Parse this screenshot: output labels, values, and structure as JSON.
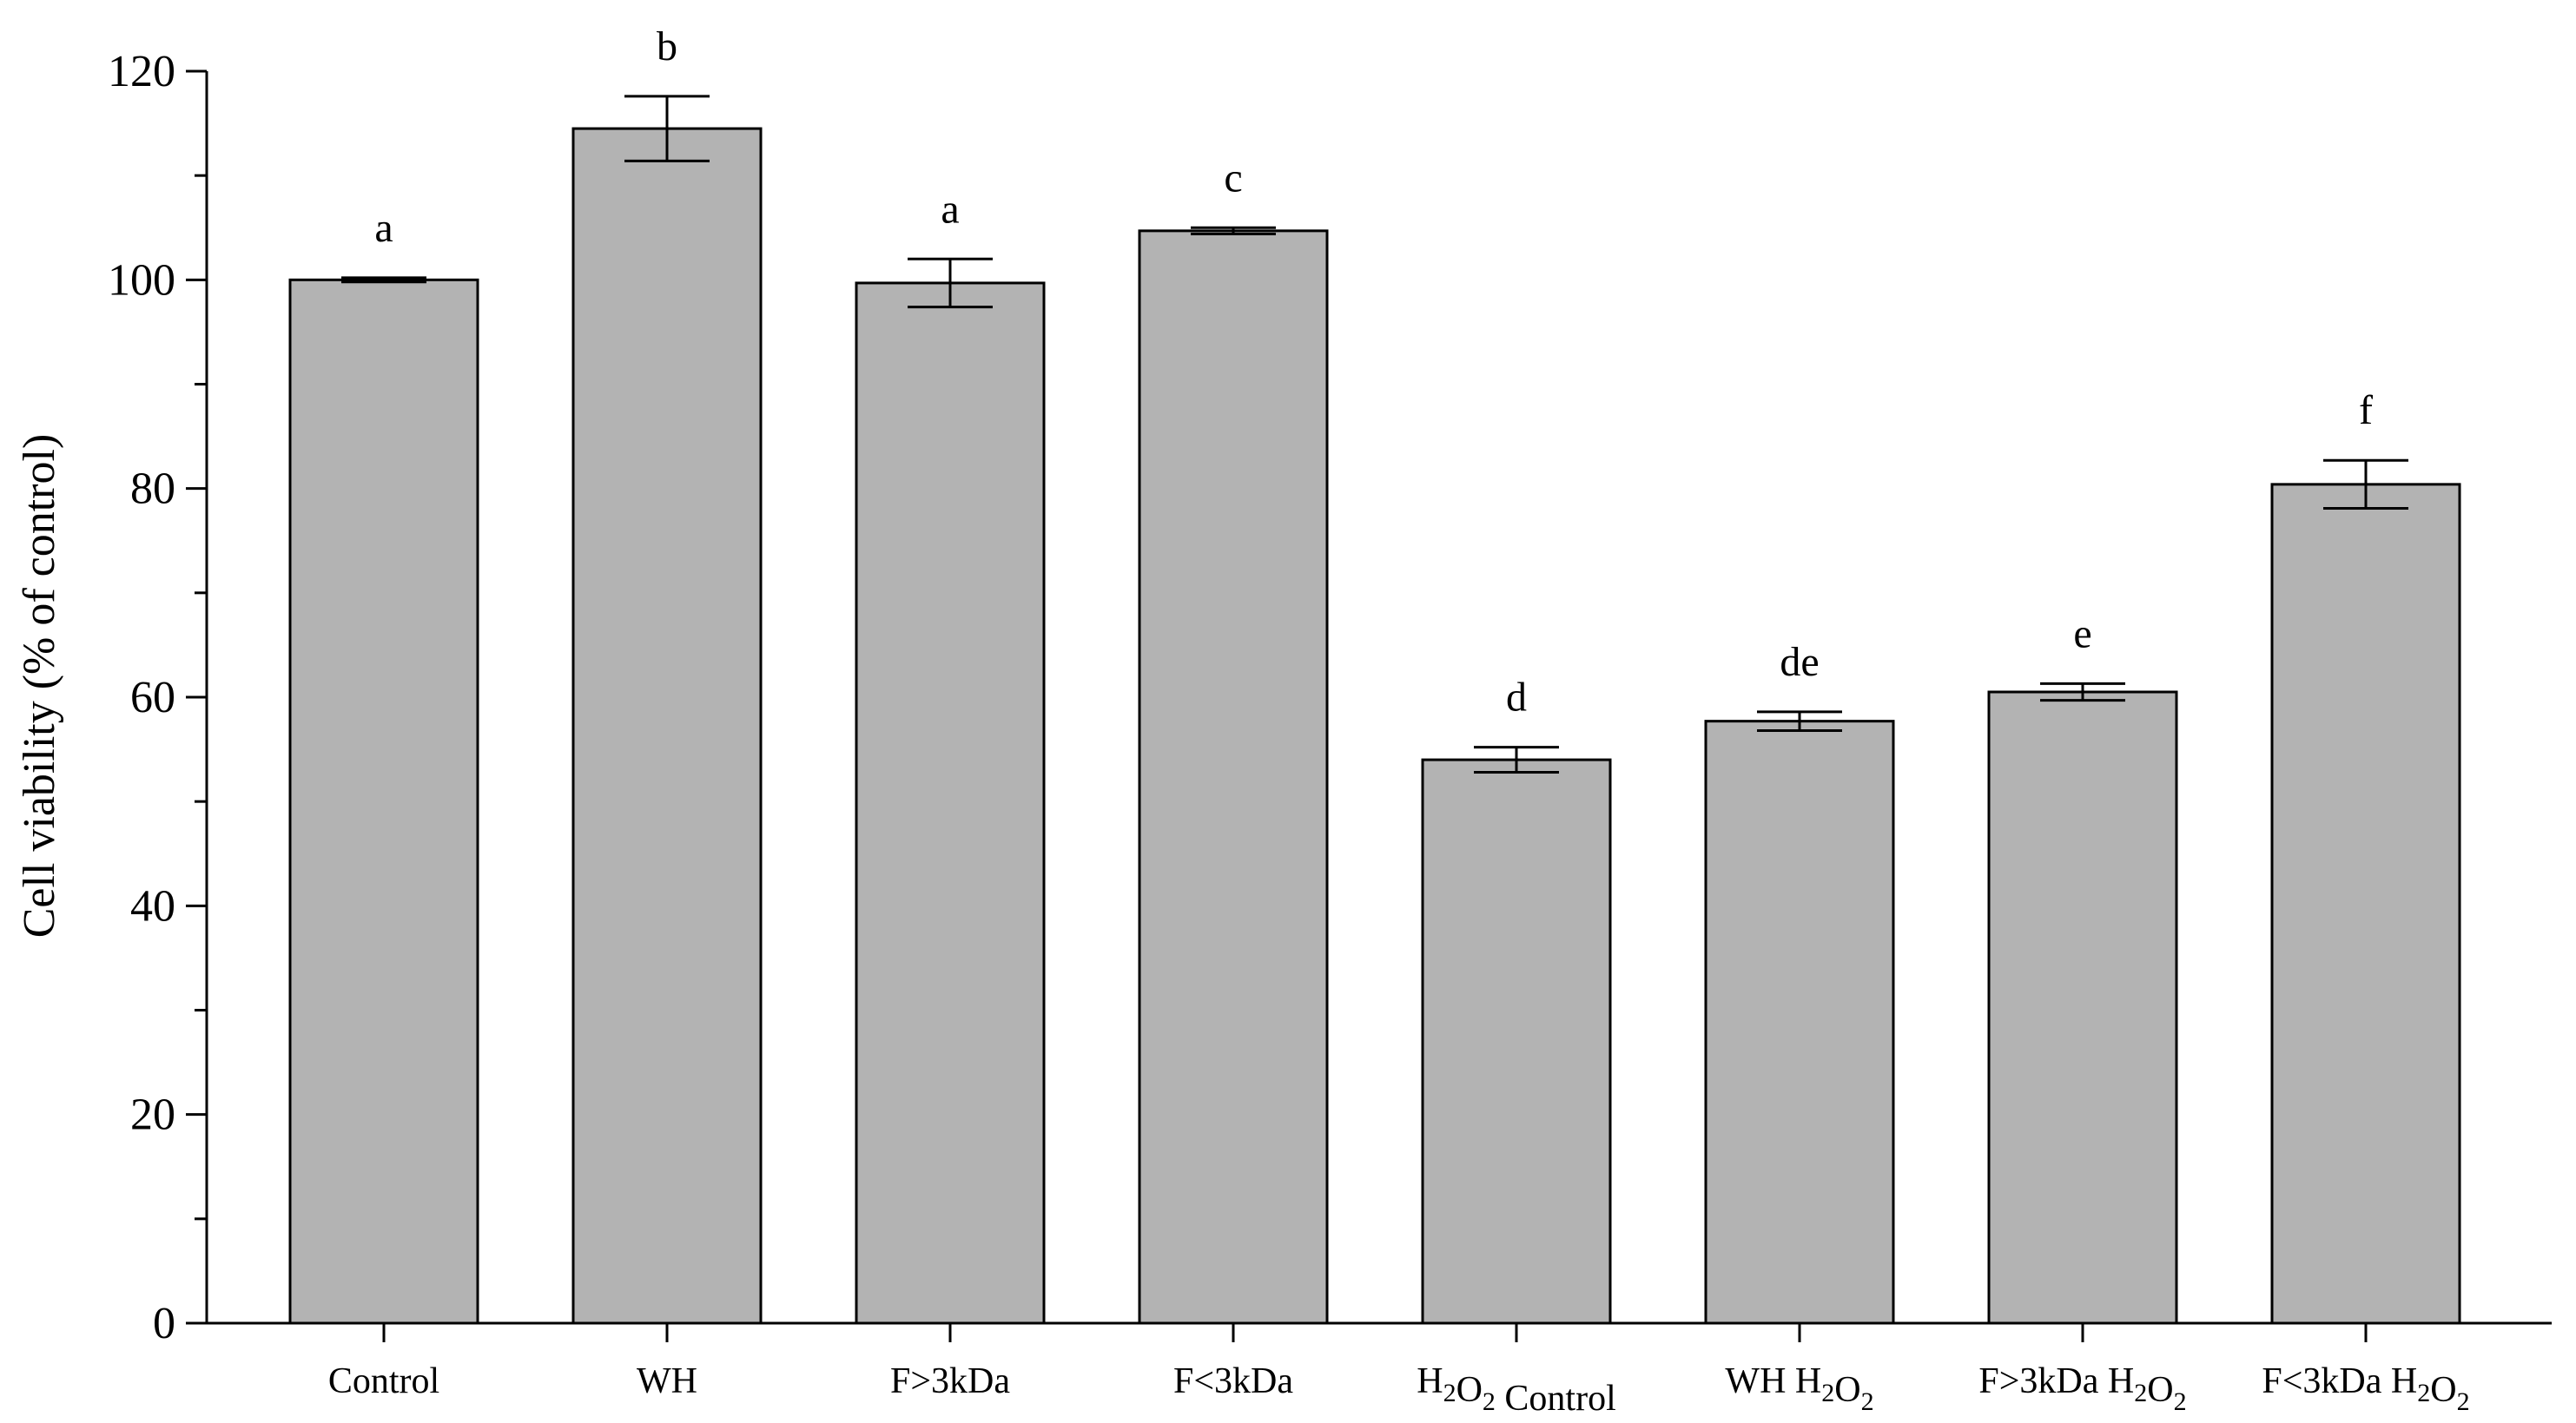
{
  "chart_data": {
    "type": "bar",
    "categories": [
      {
        "main": "Control",
        "parts": [
          {
            "t": "Control",
            "sub": false
          }
        ]
      },
      {
        "main": "WH",
        "parts": [
          {
            "t": "WH",
            "sub": false
          }
        ]
      },
      {
        "main": "F>3kDa",
        "parts": [
          {
            "t": "F>3kDa",
            "sub": false
          }
        ]
      },
      {
        "main": "F<3kDa",
        "parts": [
          {
            "t": "F<3kDa",
            "sub": false
          }
        ]
      },
      {
        "main": "H2O2 Control",
        "parts": [
          {
            "t": "H",
            "sub": false
          },
          {
            "t": "2",
            "sub": true
          },
          {
            "t": "O",
            "sub": false
          },
          {
            "t": "2",
            "sub": true
          },
          {
            "t": " Control",
            "sub": false
          }
        ]
      },
      {
        "main": "WH H2O2",
        "parts": [
          {
            "t": "WH H",
            "sub": false
          },
          {
            "t": "2",
            "sub": true
          },
          {
            "t": "O",
            "sub": false
          },
          {
            "t": "2",
            "sub": true
          }
        ]
      },
      {
        "main": "F>3kDa H2O2",
        "parts": [
          {
            "t": "F>3kDa H",
            "sub": false
          },
          {
            "t": "2",
            "sub": true
          },
          {
            "t": "O",
            "sub": false
          },
          {
            "t": "2",
            "sub": true
          }
        ]
      },
      {
        "main": "F<3kDa H2O2",
        "parts": [
          {
            "t": "F<3kDa H",
            "sub": false
          },
          {
            "t": "2",
            "sub": true
          },
          {
            "t": "O",
            "sub": false
          },
          {
            "t": "2",
            "sub": true
          }
        ]
      }
    ],
    "values": [
      100.0,
      114.5,
      99.7,
      104.7,
      54.0,
      57.7,
      60.5,
      80.4
    ],
    "errors": [
      0.2,
      3.1,
      2.3,
      0.3,
      1.2,
      0.9,
      0.8,
      2.3
    ],
    "significance": [
      "a",
      "b",
      "a",
      "c",
      "d",
      "de",
      "e",
      "f"
    ],
    "ylabel": "Cell viability (% of control)",
    "xlabel": "",
    "title": "",
    "ylim": [
      0,
      120
    ],
    "yticks": [
      0,
      20,
      40,
      60,
      80,
      100,
      120
    ],
    "grid": false,
    "colors": {
      "bar": "#b3b3b3",
      "stroke": "#000000"
    }
  }
}
